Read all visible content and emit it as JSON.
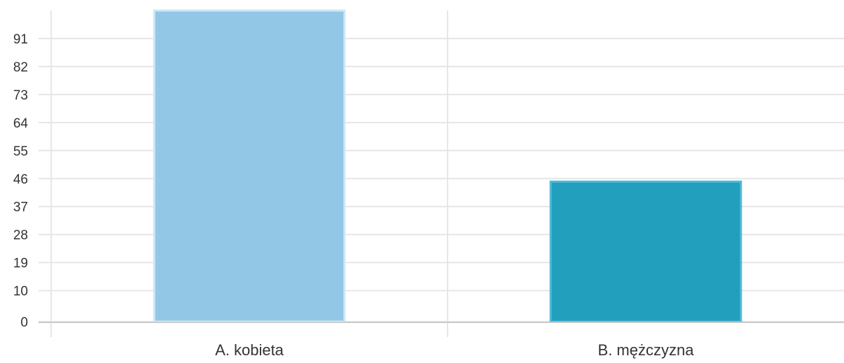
{
  "chart_data": {
    "type": "bar",
    "categories": [
      "A. kobieta",
      "B. mężczyzna"
    ],
    "values": [
      100,
      45
    ],
    "yticks": [
      0,
      10,
      19,
      28,
      37,
      46,
      55,
      64,
      73,
      82,
      91
    ],
    "ylim": [
      0,
      100
    ],
    "grid": true,
    "title": "",
    "xlabel": "",
    "ylabel": "",
    "colors": {
      "bars": [
        "#92c8e6",
        "#229fbd"
      ],
      "bar_borders": [
        "#cfe8f5",
        "#4fbad6"
      ],
      "grid": "#e6e6e6",
      "axis": "#cccccc",
      "text": "#333333"
    }
  }
}
